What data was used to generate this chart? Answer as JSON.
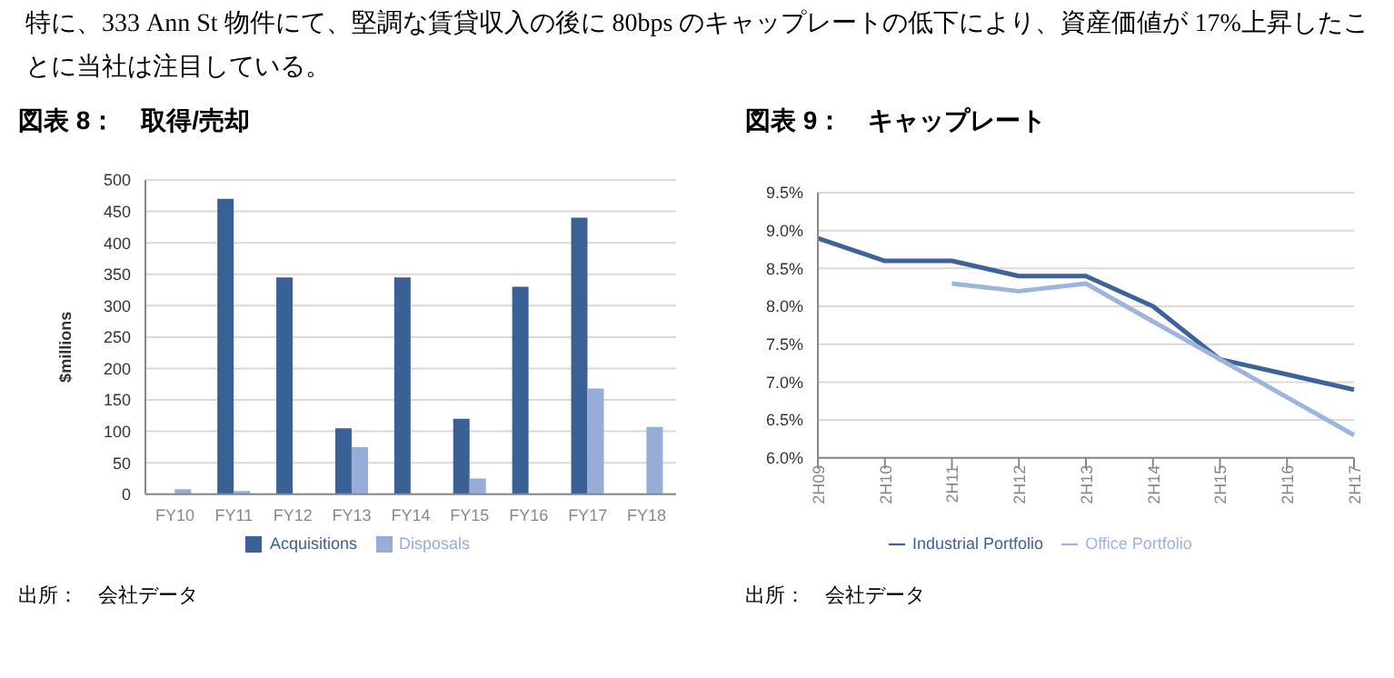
{
  "chart_data": [
    {
      "type": "bar",
      "title": "図表 8：　取得/売却",
      "ylabel": "$millions",
      "categories": [
        "FY10",
        "FY11",
        "FY12",
        "FY13",
        "FY14",
        "FY15",
        "FY16",
        "FY17",
        "FY18"
      ],
      "series": [
        {
          "name": "Acquisitions",
          "color": "#3a6195",
          "values": [
            null,
            470,
            345,
            105,
            345,
            120,
            330,
            440,
            null
          ]
        },
        {
          "name": "Disposals",
          "color": "#97acd6",
          "values": [
            8,
            5,
            null,
            75,
            null,
            25,
            null,
            168,
            107
          ]
        }
      ],
      "ylim": [
        0,
        500
      ],
      "yticks": [
        0,
        50,
        100,
        150,
        200,
        250,
        300,
        350,
        400,
        450,
        500
      ],
      "grid": "y",
      "legend": "bottom",
      "annotations": [
        "特に、333 Ann St 物件にて、堅調な賃貸収入の後に 80bps のキャップレートの低下により、資産価値が 17%上昇したことに当社は注目している。",
        "出所：　会社データ"
      ]
    },
    {
      "type": "line",
      "title": "図表 9：　キャップレート",
      "categories": [
        "2H09",
        "2H10",
        "2H11",
        "2H12",
        "2H13",
        "2H14",
        "2H15",
        "2H16",
        "2H17"
      ],
      "series": [
        {
          "name": "Industrial Portfolio",
          "color": "#3d6399",
          "values": [
            8.9,
            8.6,
            8.6,
            8.4,
            8.4,
            8.0,
            7.3,
            7.1,
            6.9
          ]
        },
        {
          "name": "Office Portfolio",
          "color": "#9fb4dc",
          "values": [
            null,
            null,
            8.3,
            8.2,
            8.3,
            7.8,
            7.3,
            6.8,
            6.3
          ]
        }
      ],
      "ylim": [
        6.0,
        9.5
      ],
      "yticks": [
        {
          "value": 6.0,
          "label": "6.0%"
        },
        {
          "value": 6.5,
          "label": "6.5%"
        },
        {
          "value": 7.0,
          "label": "7.0%"
        },
        {
          "value": 7.5,
          "label": "7.5%"
        },
        {
          "value": 8.0,
          "label": "8.0%"
        },
        {
          "value": 8.5,
          "label": "8.5%"
        },
        {
          "value": 9.0,
          "label": "9.0%"
        },
        {
          "value": 9.5,
          "label": "9.5%"
        }
      ],
      "grid": "y",
      "legend": "bottom",
      "marker": "none",
      "line_style": "solid",
      "annotations": [
        "出所：　会社データ"
      ]
    }
  ]
}
